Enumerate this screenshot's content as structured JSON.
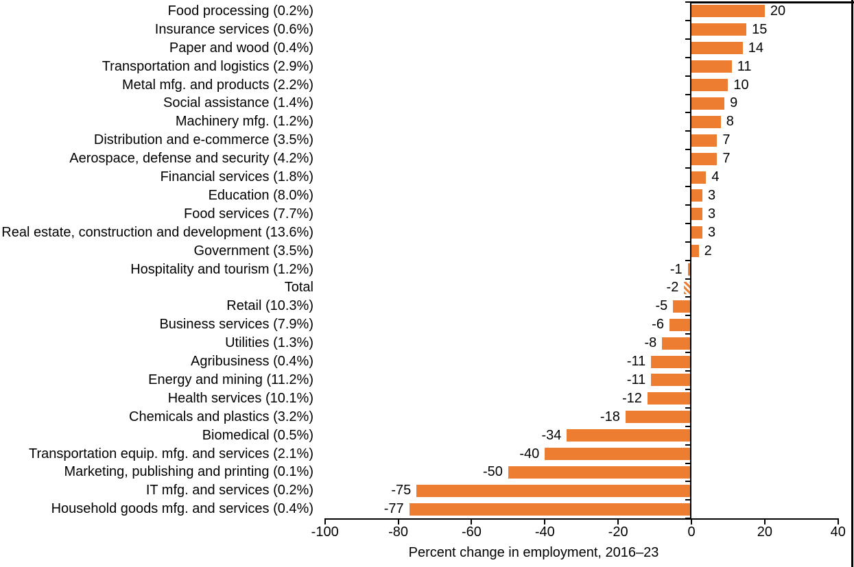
{
  "chart_data": {
    "type": "bar",
    "orientation": "horizontal",
    "xlabel": "Percent change in employment, 2016–23",
    "xlim": [
      -100,
      40
    ],
    "x_ticks": [
      -100,
      -80,
      -60,
      -40,
      -20,
      0,
      20,
      40
    ],
    "grid": false,
    "legend": false,
    "data_labels": true,
    "bar_color": "#ED7D31",
    "hatched_category": "Total",
    "hatch_style": "diagonal-stripes-orange-on-white",
    "rows": [
      {
        "label": "Food processing (0.2%)",
        "value": 20
      },
      {
        "label": "Insurance services (0.6%)",
        "value": 15
      },
      {
        "label": "Paper and wood (0.4%)",
        "value": 14
      },
      {
        "label": "Transportation and logistics (2.9%)",
        "value": 11
      },
      {
        "label": "Metal mfg. and products (2.2%)",
        "value": 10
      },
      {
        "label": "Social assistance (1.4%)",
        "value": 9
      },
      {
        "label": "Machinery mfg. (1.2%)",
        "value": 8
      },
      {
        "label": "Distribution and e-commerce (3.5%)",
        "value": 7
      },
      {
        "label": "Aerospace, defense and security (4.2%)",
        "value": 7
      },
      {
        "label": "Financial services (1.8%)",
        "value": 4
      },
      {
        "label": "Education (8.0%)",
        "value": 3
      },
      {
        "label": "Food services (7.7%)",
        "value": 3
      },
      {
        "label": "Real estate, construction and development (13.6%)",
        "value": 3
      },
      {
        "label": "Government (3.5%)",
        "value": 2
      },
      {
        "label": "Hospitality and tourism (1.2%)",
        "value": -1
      },
      {
        "label": "Total",
        "value": -2
      },
      {
        "label": "Retail (10.3%)",
        "value": -5
      },
      {
        "label": "Business services (7.9%)",
        "value": -6
      },
      {
        "label": "Utilities (1.3%)",
        "value": -8
      },
      {
        "label": "Agribusiness (0.4%)",
        "value": -11
      },
      {
        "label": "Energy and mining (11.2%)",
        "value": -11
      },
      {
        "label": "Health services (10.1%)",
        "value": -12
      },
      {
        "label": "Chemicals and plastics (3.2%)",
        "value": -18
      },
      {
        "label": "Biomedical (0.5%)",
        "value": -34
      },
      {
        "label": "Transportation equip. mfg. and services (2.1%)",
        "value": -40
      },
      {
        "label": "Marketing, publishing and printing (0.1%)",
        "value": -50
      },
      {
        "label": "IT mfg. and services (0.2%)",
        "value": -75
      },
      {
        "label": "Household goods mfg. and services (0.4%)",
        "value": -77
      }
    ]
  }
}
